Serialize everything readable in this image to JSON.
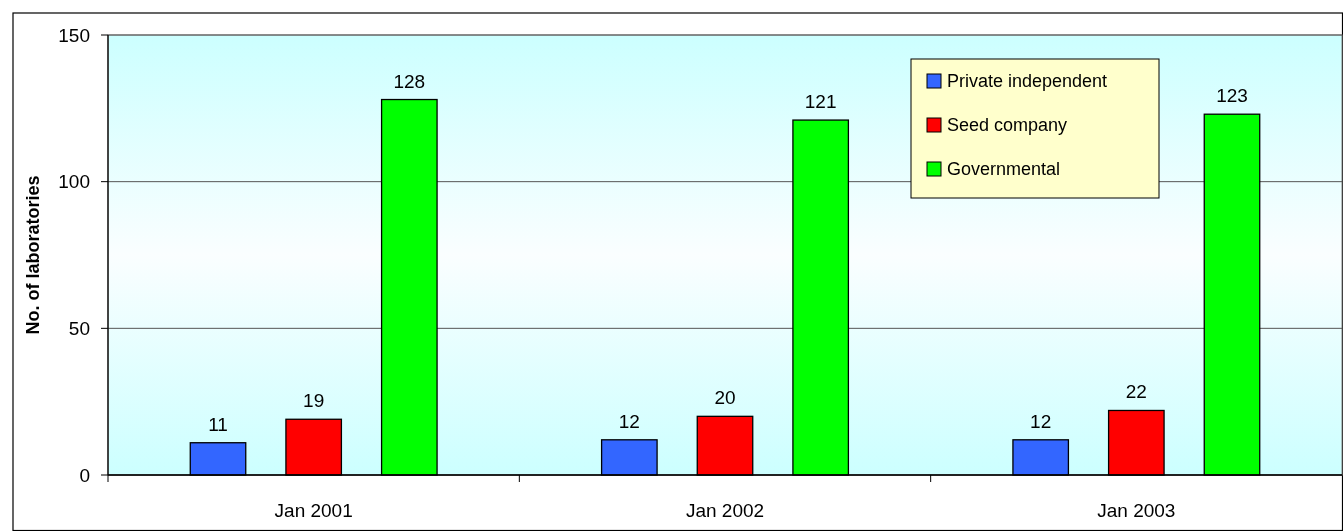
{
  "chart_data": {
    "type": "bar",
    "ylabel": "No. of laboratories",
    "categories": [
      "Jan 2001",
      "Jan 2002",
      "Jan 2003"
    ],
    "series": [
      {
        "name": "Private independent",
        "color": "#3366ff",
        "values": [
          11,
          12,
          12
        ]
      },
      {
        "name": "Seed company",
        "color": "#ff0000",
        "values": [
          19,
          20,
          22
        ]
      },
      {
        "name": "Governmental",
        "color": "#00ff00",
        "values": [
          128,
          121,
          123
        ]
      }
    ],
    "ylim": [
      0,
      150
    ],
    "yticks": [
      0,
      50,
      100,
      150
    ],
    "grid": "y",
    "legend": "top right",
    "data_labels": true
  }
}
